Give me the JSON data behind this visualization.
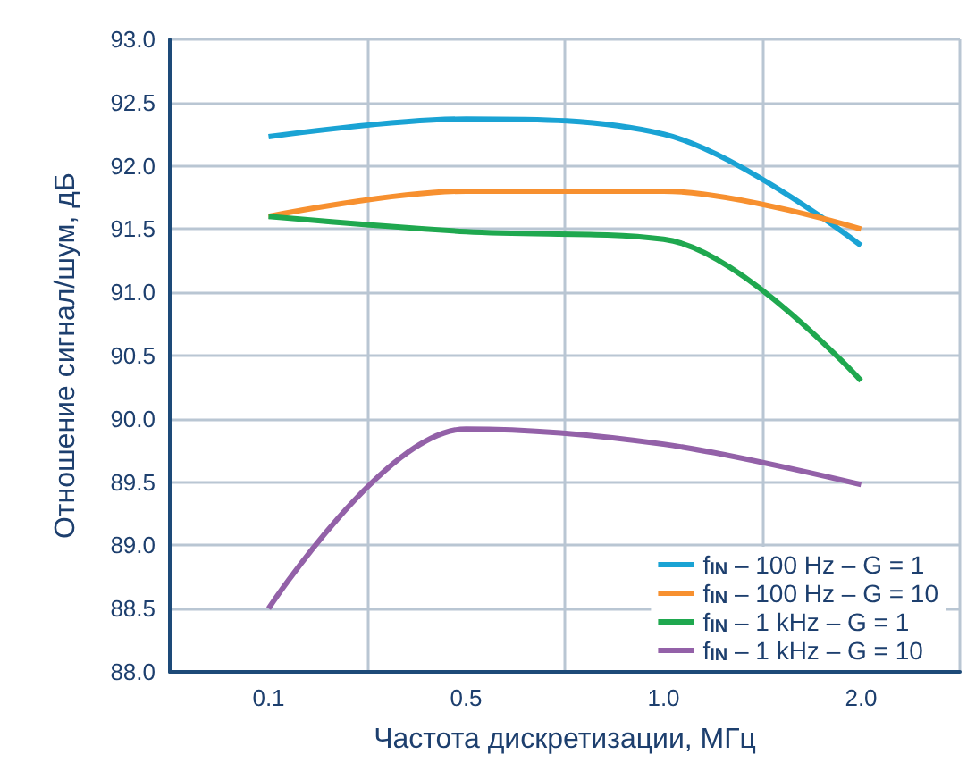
{
  "chart_data": {
    "type": "line",
    "xlabel": "Частота дискретизации, МГц",
    "ylabel": "Отношение сигнал/шум, дБ",
    "categories": [
      "0.1",
      "0.5",
      "1.0",
      "2.0"
    ],
    "series": [
      {
        "name": "f$_{IN}$ – 100 Hz – G = 1",
        "color": "#1aa3d4",
        "values": [
          92.23,
          92.37,
          92.25,
          91.37
        ]
      },
      {
        "name": "f$_{IN}$ – 100 Hz – G = 10",
        "color": "#f7902f",
        "values": [
          91.6,
          91.8,
          91.8,
          91.5
        ]
      },
      {
        "name": "f$_{IN}$ – 1 kHz – G = 1",
        "color": "#1fa84f",
        "values": [
          91.6,
          91.48,
          91.42,
          90.3
        ]
      },
      {
        "name": "f$_{IN}$ – 1 kHz – G = 10",
        "color": "#9361a8",
        "values": [
          88.5,
          89.92,
          89.8,
          89.48
        ]
      }
    ],
    "ylim": [
      88,
      93
    ],
    "yticks": [
      {
        "value": 88,
        "label": "88.0"
      },
      88.5,
      {
        "value": 89,
        "label": "89.0"
      },
      89.5,
      {
        "value": 90,
        "label": "90.0"
      },
      90.5,
      {
        "value": 91,
        "label": "91.0"
      },
      91.5,
      {
        "value": 92,
        "label": "92.0"
      },
      92.5,
      {
        "value": 93,
        "label": "93.0"
      }
    ],
    "grid": true,
    "legend": "bottom right",
    "marker": "none",
    "line_style": "solid"
  }
}
